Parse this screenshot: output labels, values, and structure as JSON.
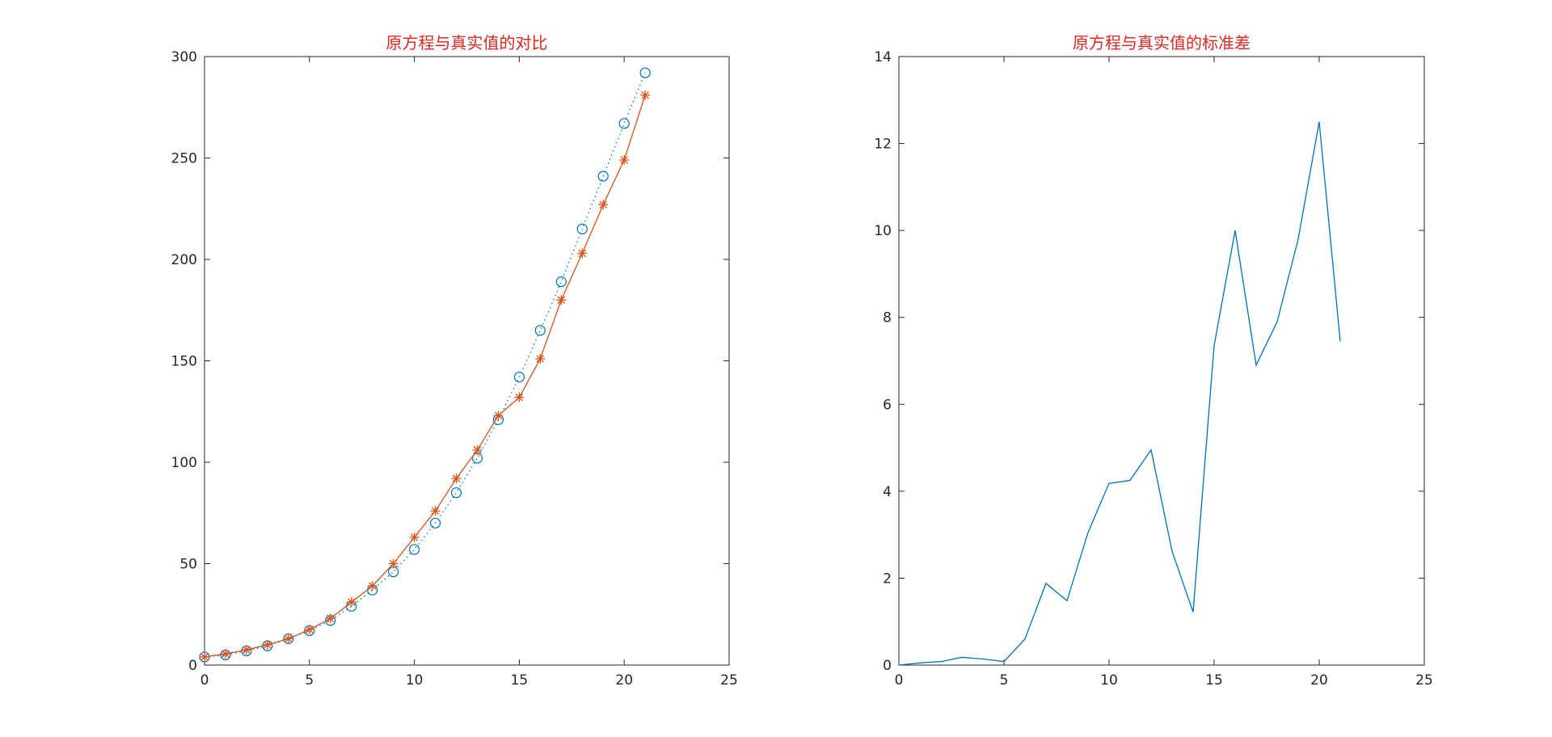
{
  "colors": {
    "series_blue": "#0072BD",
    "series_orange": "#D95319",
    "title": "#E0271E",
    "axis": "#262626"
  },
  "chart_data": [
    {
      "type": "line",
      "title": "原方程与真实值的对比",
      "xlabel": "",
      "ylabel": "",
      "xlim": [
        0,
        25
      ],
      "ylim": [
        0,
        300
      ],
      "xticks": [
        "0",
        "5",
        "10",
        "15",
        "20",
        "25"
      ],
      "yticks": [
        "0",
        "50",
        "100",
        "150",
        "200",
        "250",
        "300"
      ],
      "grid": false,
      "x": [
        0,
        1,
        2,
        3,
        4,
        5,
        6,
        7,
        8,
        9,
        10,
        11,
        12,
        13,
        14,
        15,
        16,
        17,
        18,
        19,
        20,
        21
      ],
      "series": [
        {
          "marker": "circle",
          "line_style": "dotted",
          "values": [
            4,
            5,
            7,
            9.5,
            13,
            17,
            22,
            29,
            37,
            46,
            57,
            70,
            85,
            102,
            121,
            142,
            165,
            189,
            215,
            241,
            267,
            292
          ]
        },
        {
          "marker": "asterisk",
          "line_style": "solid",
          "values": [
            4,
            5.5,
            7.5,
            10,
            13,
            17.5,
            23,
            31,
            39,
            50,
            63,
            76,
            92,
            106,
            123,
            132,
            151,
            180,
            203,
            227,
            249,
            281
          ]
        }
      ]
    },
    {
      "type": "line",
      "title": "原方程与真实值的标准差",
      "xlabel": "",
      "ylabel": "",
      "xlim": [
        0,
        25
      ],
      "ylim": [
        0,
        14
      ],
      "xticks": [
        "0",
        "5",
        "10",
        "15",
        "20",
        "25"
      ],
      "yticks": [
        "0",
        "2",
        "4",
        "6",
        "8",
        "10",
        "12",
        "14"
      ],
      "grid": false,
      "x": [
        0,
        1,
        2,
        3,
        4,
        5,
        6,
        7,
        8,
        9,
        10,
        11,
        12,
        13,
        14,
        15,
        16,
        17,
        18,
        19,
        20,
        21
      ],
      "series": [
        {
          "marker": "none",
          "line_style": "solid",
          "values": [
            0,
            0.05,
            0.08,
            0.18,
            0.14,
            0.08,
            0.6,
            1.88,
            1.48,
            3.05,
            4.18,
            4.25,
            4.95,
            2.62,
            1.22,
            7.35,
            10.0,
            6.9,
            7.9,
            9.8,
            12.5,
            7.45
          ]
        }
      ]
    }
  ]
}
